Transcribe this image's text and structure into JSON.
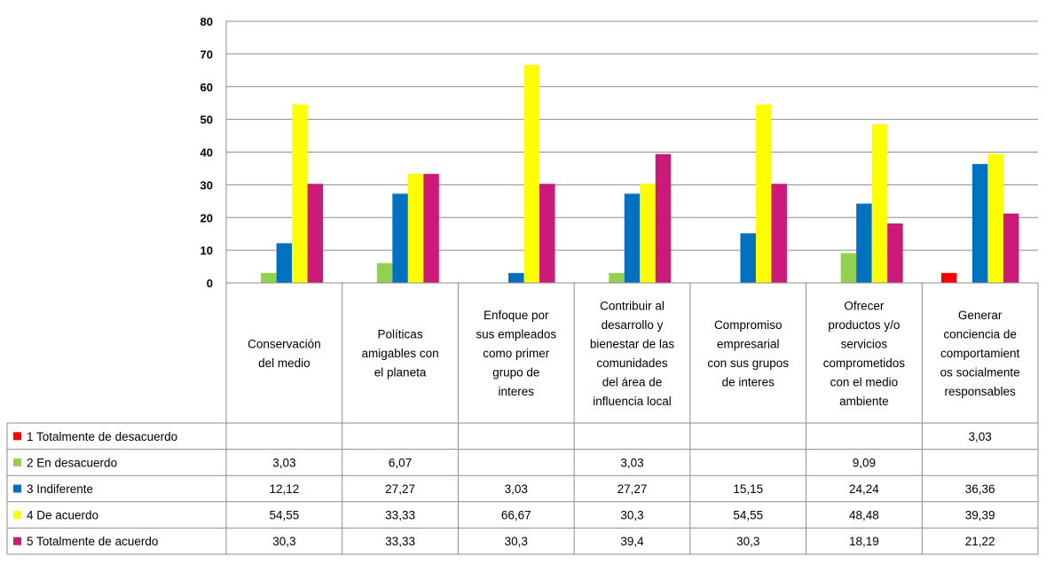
{
  "chart_data": {
    "type": "bar",
    "title": "",
    "xlabel": "",
    "ylabel": "",
    "ylim": [
      0,
      80
    ],
    "yticks": [
      0,
      10,
      20,
      30,
      40,
      50,
      60,
      70,
      80
    ],
    "grid": true,
    "legend": "data-table-left",
    "categories": [
      [
        "Conservación",
        "del medio"
      ],
      [
        "Políticas",
        "amigables con",
        "el planeta"
      ],
      [
        "Enfoque por",
        "sus empleados",
        "como primer",
        "grupo de",
        "interes"
      ],
      [
        "Contribuir al",
        "desarrollo y",
        "bienestar de las",
        "comunidades",
        "del área de",
        "influencia local"
      ],
      [
        "Compromiso",
        "empresarial",
        "con sus grupos",
        "de interes"
      ],
      [
        "Ofrecer",
        "productos y/o",
        "servicios",
        "comprometidos",
        "con el medio",
        "ambiente"
      ],
      [
        "Generar",
        "conciencia de",
        "comportamient",
        "os socialmente",
        "responsables"
      ]
    ],
    "series": [
      {
        "name": "1 Totalmente de desacuerdo",
        "color": "#ff0000",
        "values": [
          null,
          null,
          null,
          null,
          null,
          null,
          3.03
        ],
        "labels": [
          "",
          "",
          "",
          "",
          "",
          "",
          "3,03"
        ]
      },
      {
        "name": "2 En desacuerdo",
        "color": "#92d050",
        "values": [
          3.03,
          6.07,
          null,
          3.03,
          null,
          9.09,
          null
        ],
        "labels": [
          "3,03",
          "6,07",
          "",
          "3,03",
          "",
          "9,09",
          ""
        ]
      },
      {
        "name": "3 Indiferente",
        "color": "#0070c0",
        "values": [
          12.12,
          27.27,
          3.03,
          27.27,
          15.15,
          24.24,
          36.36
        ],
        "labels": [
          "12,12",
          "27,27",
          "3,03",
          "27,27",
          "15,15",
          "24,24",
          "36,36"
        ]
      },
      {
        "name": "4 De acuerdo",
        "color": "#ffff00",
        "values": [
          54.55,
          33.33,
          66.67,
          30.3,
          54.55,
          48.48,
          39.39
        ],
        "labels": [
          "54,55",
          "33,33",
          "66,67",
          "30,3",
          "54,55",
          "48,48",
          "39,39"
        ]
      },
      {
        "name": "5 Totalmente de acuerdo",
        "color": "#cc1a7a",
        "values": [
          30.3,
          33.33,
          30.3,
          39.4,
          30.3,
          18.19,
          21.22
        ],
        "labels": [
          "30,3",
          "33,33",
          "30,3",
          "39,4",
          "30,3",
          "18,19",
          "21,22"
        ]
      }
    ]
  }
}
